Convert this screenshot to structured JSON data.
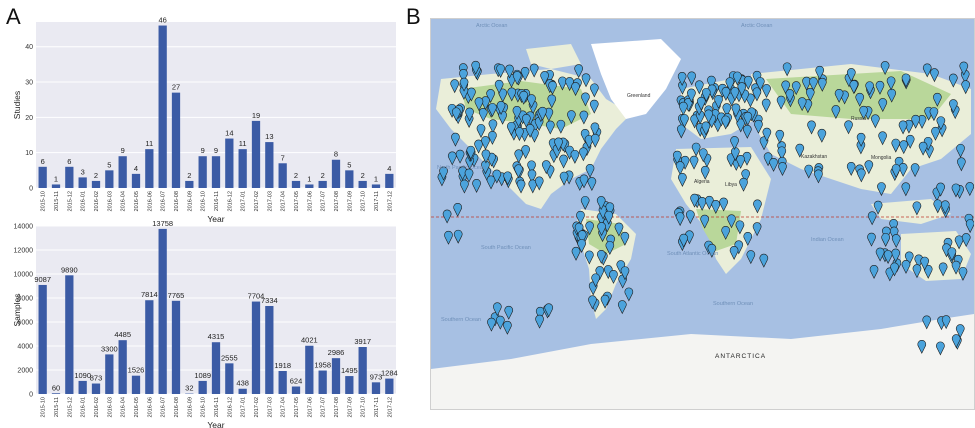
{
  "panels": {
    "a_label": "A",
    "b_label": "B"
  },
  "chart_data": [
    {
      "type": "bar",
      "panel": "A-top",
      "ylabel": "Studies",
      "xlabel": "Year",
      "ylim": [
        0,
        47
      ],
      "yticks": [
        0,
        10,
        20,
        30,
        40
      ],
      "grid": true,
      "bar_color": "#3b5ba5",
      "categories": [
        "2015-10",
        "2015-11",
        "2015-12",
        "2016-01",
        "2016-02",
        "2016-03",
        "2016-04",
        "2016-05",
        "2016-06",
        "2016-07",
        "2016-08",
        "2016-09",
        "2016-10",
        "2016-11",
        "2016-12",
        "2017-01",
        "2017-02",
        "2017-03",
        "2017-04",
        "2017-05",
        "2017-06",
        "2017-07",
        "2017-08",
        "2017-09",
        "2017-10",
        "2017-11",
        "2017-12"
      ],
      "values": [
        6,
        1,
        6,
        3,
        2,
        5,
        9,
        4,
        11,
        46,
        27,
        2,
        9,
        9,
        14,
        11,
        19,
        13,
        7,
        2,
        1,
        2,
        8,
        5,
        2,
        1,
        4
      ]
    },
    {
      "type": "bar",
      "panel": "A-bottom",
      "ylabel": "Samples",
      "xlabel": "Year",
      "ylim": [
        0,
        14000
      ],
      "yticks": [
        0,
        2000,
        4000,
        6000,
        8000,
        10000,
        12000,
        14000
      ],
      "grid": true,
      "bar_color": "#3b5ba5",
      "categories": [
        "2015-10",
        "2015-11",
        "2015-12",
        "2016-01",
        "2016-02",
        "2016-03",
        "2016-04",
        "2016-05",
        "2016-06",
        "2016-07",
        "2016-08",
        "2016-09",
        "2016-10",
        "2016-11",
        "2016-12",
        "2017-01",
        "2017-02",
        "2017-03",
        "2017-04",
        "2017-05",
        "2017-06",
        "2017-07",
        "2017-08",
        "2017-09",
        "2017-10",
        "2017-11",
        "2017-12"
      ],
      "values": [
        9087,
        60,
        9890,
        1090,
        873,
        3300,
        4485,
        1526,
        7814,
        13758,
        7765,
        32,
        1089,
        4315,
        2555,
        438,
        7704,
        7334,
        1918,
        624,
        4021,
        1958,
        2986,
        1495,
        3917,
        973,
        1284
      ]
    }
  ],
  "map": {
    "colors": {
      "ocean": "#a7c0e3",
      "land": "#eaeed9",
      "green": "#b9d79a",
      "ice": "#ffffff",
      "marker": "#4ba3dc",
      "marker_outline": "#1c1c1c",
      "equator": "#c0392b"
    },
    "labels": {
      "arctic1": "Arctic Ocean",
      "arctic2": "Arctic Ocean",
      "greenland": "Greenland",
      "north_pacific": "North Pacific Ocean",
      "south_pacific": "South Pacific Ocean",
      "south_atlantic": "South Atlantic Ocean",
      "indian": "Indian Ocean",
      "southern1": "Southern Ocean",
      "southern2": "Southern Ocean",
      "antarctica": "ANTARCTICA",
      "algeria": "Algeria",
      "libya": "Libya",
      "russia": "Russia",
      "kazakhstan": "Kazakhstan",
      "mongolia": "Mongolia"
    }
  }
}
